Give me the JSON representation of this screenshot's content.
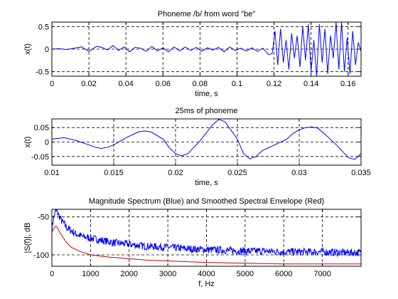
{
  "chart_data": [
    {
      "type": "line",
      "title": "Phoneme /b/ from word \"be\"",
      "xlabel": "time, s",
      "ylabel": "x(t)",
      "xlim": [
        0,
        0.167
      ],
      "ylim": [
        -0.6,
        0.6
      ],
      "xticks": [
        0,
        0.02,
        0.04,
        0.06,
        0.08,
        0.1,
        0.12,
        0.14,
        0.16
      ],
      "xtick_labels": [
        "0",
        "0.02",
        "0.04",
        "0.06",
        "0.08",
        "0.1",
        "0.12",
        "0.14",
        "0.16"
      ],
      "yticks": [
        -0.5,
        0,
        0.5
      ],
      "ytick_labels": [
        "-0.5",
        "0",
        "0.5"
      ],
      "grid": true,
      "series": [
        {
          "color": "#0000ff",
          "x": [
            0,
            0.004,
            0.008,
            0.012,
            0.016,
            0.02,
            0.024,
            0.027,
            0.03,
            0.033,
            0.036,
            0.039,
            0.042,
            0.045,
            0.048,
            0.051,
            0.054,
            0.057,
            0.06,
            0.063,
            0.066,
            0.069,
            0.072,
            0.075,
            0.078,
            0.081,
            0.084,
            0.087,
            0.09,
            0.093,
            0.096,
            0.099,
            0.102,
            0.105,
            0.108,
            0.111,
            0.114,
            0.117,
            0.119,
            0.1205,
            0.122,
            0.1235,
            0.125,
            0.1265,
            0.128,
            0.1295,
            0.131,
            0.1325,
            0.134,
            0.1355,
            0.137,
            0.1385,
            0.14,
            0.1415,
            0.143,
            0.1445,
            0.146,
            0.1475,
            0.149,
            0.1505,
            0.152,
            0.1535,
            0.155,
            0.1565,
            0.158,
            0.1595,
            0.161,
            0.1625,
            0.164,
            0.1655,
            0.167
          ],
          "y": [
            0,
            0.01,
            -0.01,
            0.02,
            0.05,
            -0.05,
            0.06,
            0.04,
            -0.02,
            0.08,
            -0.03,
            0.05,
            -0.06,
            0.04,
            0.02,
            -0.05,
            0.06,
            -0.04,
            0.03,
            -0.06,
            0.05,
            -0.04,
            0.05,
            -0.03,
            0.04,
            -0.05,
            0.03,
            -0.02,
            0.04,
            -0.06,
            0.05,
            -0.03,
            0.02,
            -0.04,
            0.03,
            -0.05,
            0.02,
            -0.12,
            -0.1,
            0.4,
            -0.35,
            0.45,
            -0.3,
            0.2,
            -0.45,
            0.35,
            -0.2,
            0.3,
            -0.4,
            0.5,
            -0.25,
            0.55,
            -0.5,
            0.2,
            -0.6,
            0.55,
            -0.3,
            0.45,
            -0.55,
            0.3,
            -0.2,
            0.6,
            -0.45,
            0.6,
            -0.5,
            0.25,
            -0.55,
            0.4,
            -0.35,
            0.15,
            -0.05
          ]
        }
      ]
    },
    {
      "type": "line",
      "title": "25ms of phoneme",
      "xlabel": "time, s",
      "ylabel": "x(t)",
      "xlim": [
        0.01,
        0.035
      ],
      "ylim": [
        -0.08,
        0.08
      ],
      "xticks": [
        0.01,
        0.015,
        0.02,
        0.025,
        0.03,
        0.035
      ],
      "xtick_labels": [
        "0.01",
        "0.015",
        "0.02",
        "0.025",
        "0.03",
        "0.035"
      ],
      "yticks": [
        -0.05,
        0,
        0.05
      ],
      "ytick_labels": [
        "-0.05",
        "0",
        "0.05"
      ],
      "grid": true,
      "series": [
        {
          "color": "#0000ff",
          "x": [
            0.01,
            0.011,
            0.012,
            0.013,
            0.0135,
            0.014,
            0.0145,
            0.015,
            0.016,
            0.017,
            0.0175,
            0.018,
            0.019,
            0.0195,
            0.02,
            0.0205,
            0.021,
            0.022,
            0.023,
            0.0235,
            0.024,
            0.025,
            0.0255,
            0.026,
            0.0265,
            0.027,
            0.028,
            0.029,
            0.0295,
            0.03,
            0.0305,
            0.031,
            0.0315,
            0.032,
            0.033,
            0.034,
            0.0345,
            0.035
          ],
          "y": [
            0.01,
            0.015,
            0.005,
            -0.01,
            -0.018,
            -0.022,
            -0.018,
            -0.01,
            0.015,
            0.035,
            0.038,
            0.035,
            0.01,
            -0.02,
            -0.04,
            -0.048,
            -0.04,
            0.005,
            0.06,
            0.078,
            0.07,
            0.01,
            -0.04,
            -0.058,
            -0.05,
            -0.03,
            -0.01,
            0.01,
            0.03,
            0.042,
            0.05,
            0.052,
            0.048,
            0.03,
            -0.01,
            -0.055,
            -0.06,
            -0.04
          ]
        }
      ]
    },
    {
      "type": "line",
      "title": "Magnitude Spectrum (Blue) and Smoothed Spectral Envelope (Red)",
      "xlabel": "f, Hz",
      "ylabel": "|S(f)|, dB",
      "xlim": [
        0,
        8000
      ],
      "ylim": [
        -115,
        -40
      ],
      "xticks": [
        0,
        1000,
        2000,
        3000,
        4000,
        5000,
        6000,
        7000
      ],
      "xtick_labels": [
        "0",
        "1000",
        "2000",
        "3000",
        "4000",
        "5000",
        "6000",
        "7000"
      ],
      "yticks": [
        -100,
        -50
      ],
      "ytick_labels": [
        "-100",
        "-50"
      ],
      "grid": true,
      "series": [
        {
          "color": "#0000ff",
          "x": [
            0,
            50,
            100,
            150,
            200,
            250,
            300,
            400,
            500,
            600,
            700,
            800,
            1000,
            1200,
            1400,
            1600,
            1800,
            2000,
            2300,
            2600,
            3000,
            3500,
            4000,
            4500,
            5000,
            5500,
            6000,
            6500,
            7000,
            7500,
            8000
          ],
          "y": [
            -65,
            -50,
            -42,
            -45,
            -50,
            -55,
            -58,
            -65,
            -68,
            -72,
            -74,
            -76,
            -78,
            -80,
            -82,
            -84,
            -85,
            -86,
            -88,
            -89,
            -90,
            -92,
            -93,
            -94,
            -95,
            -95,
            -96,
            -96,
            -96,
            -97,
            -97
          ],
          "noise_db": 5
        },
        {
          "color": "#cc0000",
          "x": [
            0,
            50,
            100,
            150,
            200,
            300,
            400,
            500,
            700,
            1000,
            1500,
            2000,
            2500,
            3000,
            4000,
            5000,
            6000,
            7000,
            8000
          ],
          "y": [
            -70,
            -65,
            -62,
            -65,
            -70,
            -78,
            -85,
            -90,
            -95,
            -100,
            -103,
            -105,
            -107,
            -108,
            -110,
            -111,
            -112,
            -112,
            -112
          ]
        }
      ]
    }
  ]
}
